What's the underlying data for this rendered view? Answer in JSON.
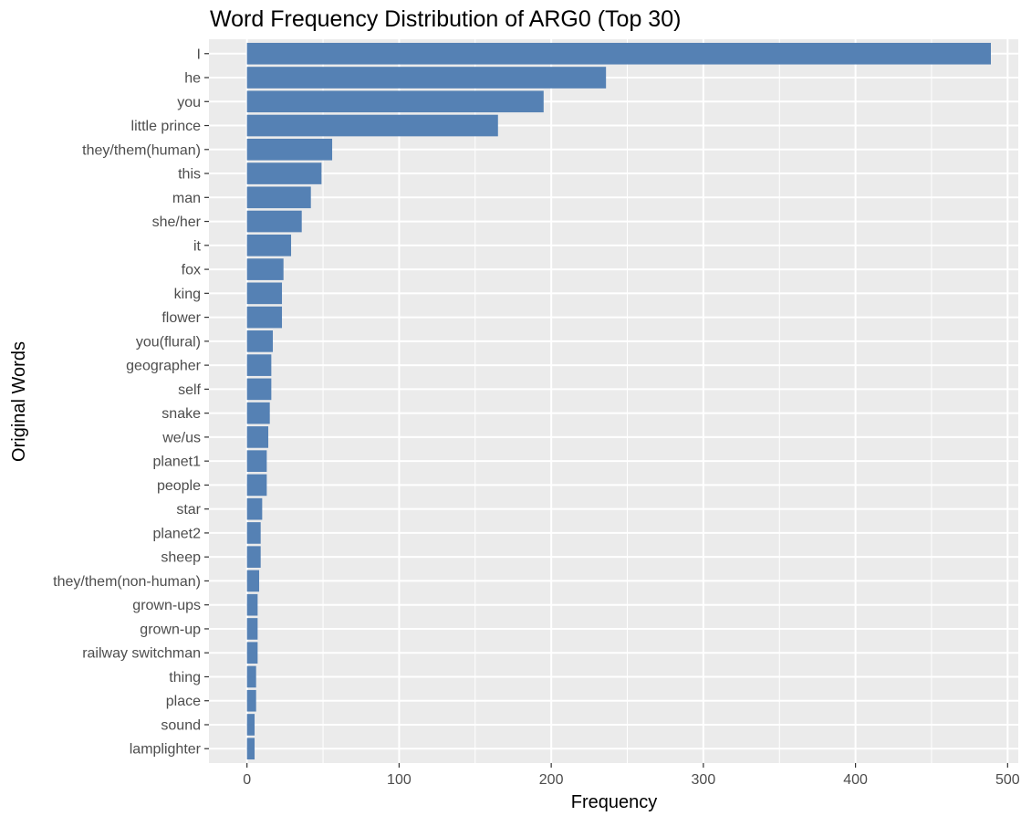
{
  "chart_data": {
    "type": "bar",
    "orientation": "horizontal",
    "title": "Word Frequency Distribution of ARG0 (Top 30)",
    "xlabel": "Frequency",
    "ylabel": "Original Words",
    "xlim": [
      -25,
      507
    ],
    "x_ticks": [
      0,
      100,
      200,
      300,
      400,
      500
    ],
    "grid": true,
    "legend": "none",
    "colors": {
      "bar": "#5581B4",
      "panel": "#EBEBEB",
      "grid": "#FFFFFF",
      "tick_mark": "#333333"
    },
    "categories": [
      "I",
      "he",
      "you",
      "little prince",
      "they/them(human)",
      "this",
      "man",
      "she/her",
      "it",
      "fox",
      "king",
      "flower",
      "you(flural)",
      "geographer",
      "self",
      "snake",
      "we/us",
      "planet1",
      "people",
      "star",
      "planet2",
      "sheep",
      "they/them(non-human)",
      "grown-ups",
      "grown-up",
      "railway switchman",
      "thing",
      "place",
      "sound",
      "lamplighter"
    ],
    "values": [
      489,
      236,
      195,
      165,
      56,
      49,
      42,
      36,
      29,
      24,
      23,
      23,
      17,
      16,
      16,
      15,
      14,
      13,
      13,
      10,
      9,
      9,
      8,
      7,
      7,
      7,
      6,
      6,
      5,
      5
    ]
  }
}
